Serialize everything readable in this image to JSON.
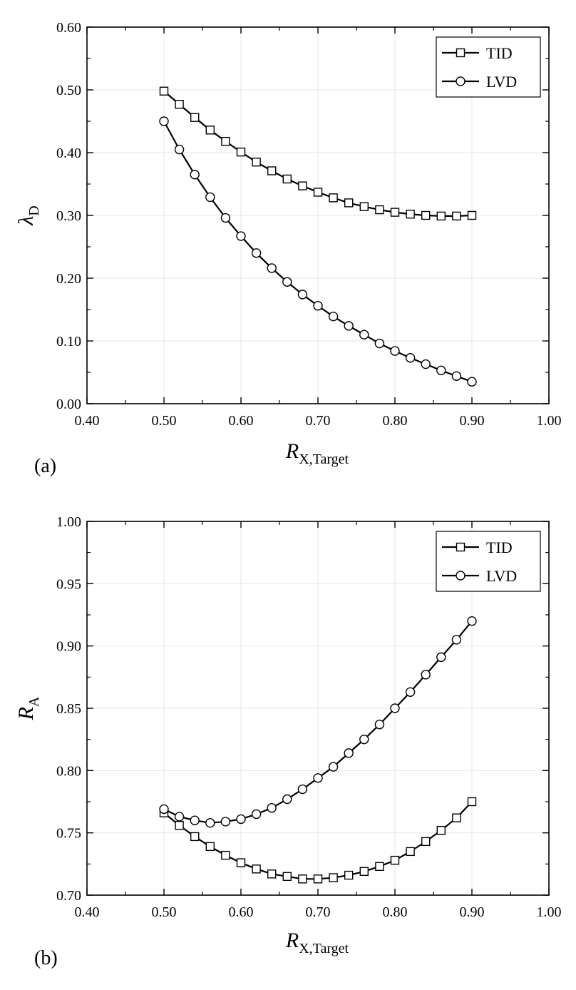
{
  "chart_data": [
    {
      "type": "line",
      "panel_label": "(a)",
      "xlabel": {
        "main": "R",
        "sub": "X,Target"
      },
      "ylabel": {
        "main": "λ",
        "sub": "D"
      },
      "xlim": [
        0.4,
        1.0
      ],
      "ylim": [
        0.0,
        0.6
      ],
      "xticks": [
        "0.40",
        "0.50",
        "0.60",
        "0.70",
        "0.80",
        "0.90",
        "1.00"
      ],
      "yticks": [
        "0.00",
        "0.10",
        "0.20",
        "0.30",
        "0.40",
        "0.50",
        "0.60"
      ],
      "grid": true,
      "legend_position": "top-right",
      "x": [
        0.5,
        0.52,
        0.54,
        0.56,
        0.58,
        0.6,
        0.62,
        0.64,
        0.66,
        0.68,
        0.7,
        0.72,
        0.74,
        0.76,
        0.78,
        0.8,
        0.82,
        0.84,
        0.86,
        0.88,
        0.9
      ],
      "series": [
        {
          "name": "TID",
          "marker": "square",
          "values": [
            0.498,
            0.477,
            0.456,
            0.436,
            0.418,
            0.401,
            0.385,
            0.371,
            0.358,
            0.347,
            0.337,
            0.328,
            0.32,
            0.314,
            0.309,
            0.305,
            0.302,
            0.3,
            0.299,
            0.299,
            0.3
          ]
        },
        {
          "name": "LVD",
          "marker": "circle",
          "values": [
            0.45,
            0.405,
            0.365,
            0.329,
            0.296,
            0.267,
            0.24,
            0.216,
            0.194,
            0.174,
            0.156,
            0.139,
            0.124,
            0.11,
            0.096,
            0.084,
            0.073,
            0.063,
            0.053,
            0.044,
            0.035
          ]
        }
      ]
    },
    {
      "type": "line",
      "panel_label": "(b)",
      "xlabel": {
        "main": "R",
        "sub": "X,Target"
      },
      "ylabel": {
        "main": "R",
        "sub": "A"
      },
      "xlim": [
        0.4,
        1.0
      ],
      "ylim": [
        0.7,
        1.0
      ],
      "xticks": [
        "0.40",
        "0.50",
        "0.60",
        "0.70",
        "0.80",
        "0.90",
        "1.00"
      ],
      "yticks": [
        "0.70",
        "0.75",
        "0.80",
        "0.85",
        "0.90",
        "0.95",
        "1.00"
      ],
      "grid": true,
      "legend_position": "top-right",
      "x": [
        0.5,
        0.52,
        0.54,
        0.56,
        0.58,
        0.6,
        0.62,
        0.64,
        0.66,
        0.68,
        0.7,
        0.72,
        0.74,
        0.76,
        0.78,
        0.8,
        0.82,
        0.84,
        0.86,
        0.88,
        0.9
      ],
      "series": [
        {
          "name": "TID",
          "marker": "square",
          "values": [
            0.766,
            0.756,
            0.747,
            0.739,
            0.732,
            0.726,
            0.721,
            0.717,
            0.715,
            0.713,
            0.713,
            0.714,
            0.716,
            0.719,
            0.723,
            0.728,
            0.735,
            0.743,
            0.752,
            0.762,
            0.775
          ]
        },
        {
          "name": "LVD",
          "marker": "circle",
          "values": [
            0.769,
            0.763,
            0.76,
            0.758,
            0.759,
            0.761,
            0.765,
            0.77,
            0.777,
            0.785,
            0.794,
            0.803,
            0.814,
            0.825,
            0.837,
            0.85,
            0.863,
            0.877,
            0.891,
            0.905,
            0.92
          ]
        }
      ]
    }
  ]
}
